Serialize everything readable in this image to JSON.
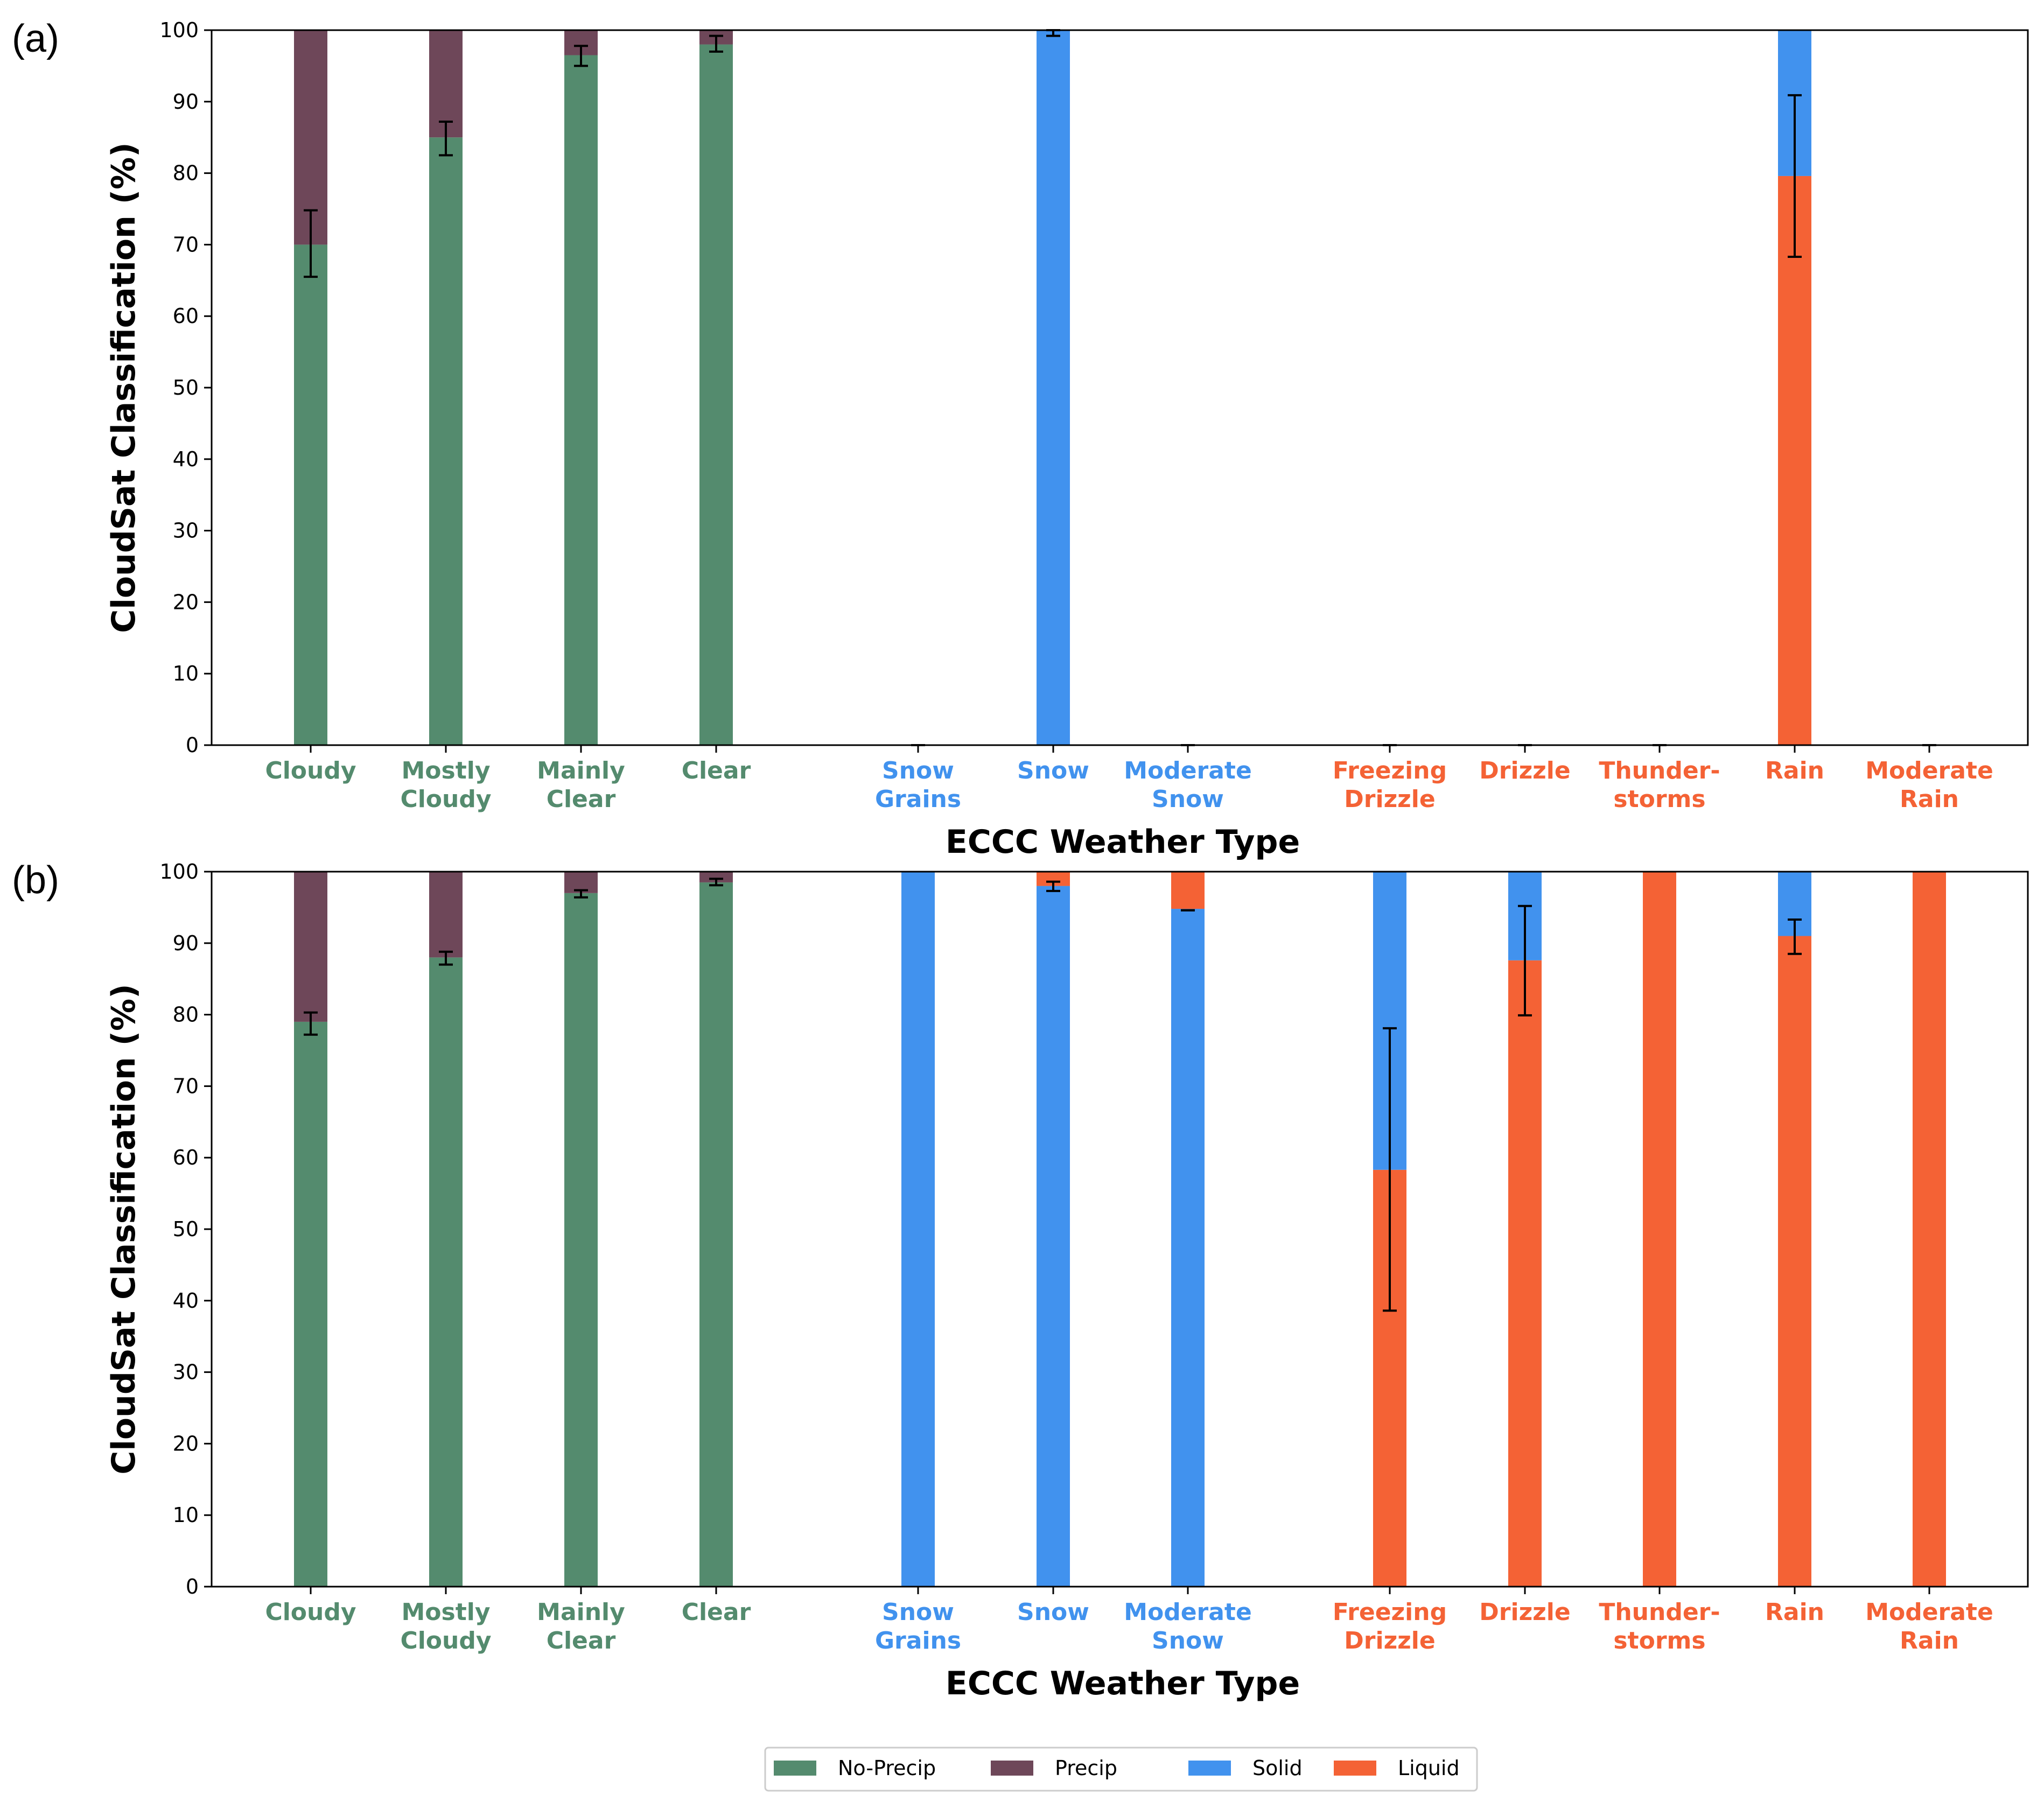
{
  "chart_data": {
    "type": "bar",
    "stacked": true,
    "colors": {
      "No-Precip": "#548B6E",
      "Precip": "#6E4759",
      "Solid": "#4192EE",
      "Liquid": "#F46235"
    },
    "category_colors": {
      "cloud": "#548B6E",
      "solid": "#4192EE",
      "liquid": "#F46235"
    },
    "categories": [
      {
        "label": [
          "Cloudy"
        ],
        "group": "cloud"
      },
      {
        "label": [
          "Mostly",
          "Cloudy"
        ],
        "group": "cloud"
      },
      {
        "label": [
          "Mainly",
          "Clear"
        ],
        "group": "cloud"
      },
      {
        "label": [
          "Clear"
        ],
        "group": "cloud"
      },
      {
        "label": [
          "Snow",
          "Grains"
        ],
        "group": "solid"
      },
      {
        "label": [
          "Snow"
        ],
        "group": "solid"
      },
      {
        "label": [
          "Moderate",
          "Snow"
        ],
        "group": "solid"
      },
      {
        "label": [
          "Freezing",
          "Drizzle"
        ],
        "group": "liquid"
      },
      {
        "label": [
          "Drizzle"
        ],
        "group": "liquid"
      },
      {
        "label": [
          "Thunder-",
          "storms"
        ],
        "group": "liquid"
      },
      {
        "label": [
          "Rain"
        ],
        "group": "liquid"
      },
      {
        "label": [
          "Moderate",
          "Rain"
        ],
        "group": "liquid"
      }
    ],
    "ylim": [
      0,
      100
    ],
    "yticks": [
      0,
      10,
      20,
      30,
      40,
      50,
      60,
      70,
      80,
      90,
      100
    ],
    "panels": [
      {
        "panel_label": "(a)",
        "xlabel": "ECCC Weather Type",
        "ylabel": "CloudSat Classification (%)",
        "bars": [
          {
            "segments": [
              [
                "No-Precip",
                70
              ],
              [
                "Precip",
                30
              ]
            ],
            "err": [
              65.5,
              74.8
            ]
          },
          {
            "segments": [
              [
                "No-Precip",
                85
              ],
              [
                "Precip",
                15
              ]
            ],
            "err": [
              82.5,
              87.2
            ]
          },
          {
            "segments": [
              [
                "No-Precip",
                96.5
              ],
              [
                "Precip",
                3.5
              ]
            ],
            "err": [
              95,
              97.8
            ]
          },
          {
            "segments": [
              [
                "No-Precip",
                98
              ],
              [
                "Precip",
                2
              ]
            ],
            "err": [
              97,
              99.2
            ]
          },
          {
            "segments": [],
            "err": [
              0,
              0
            ]
          },
          {
            "segments": [
              [
                "Solid",
                100
              ]
            ],
            "err": [
              99.2,
              100
            ]
          },
          {
            "segments": [],
            "err": [
              0,
              0
            ]
          },
          {
            "segments": [],
            "err": [
              0,
              0
            ]
          },
          {
            "segments": [],
            "err": [
              0,
              0
            ]
          },
          {
            "segments": [],
            "err": [
              0,
              0
            ]
          },
          {
            "segments": [
              [
                "Liquid",
                79.6
              ],
              [
                "Solid",
                20.4
              ]
            ],
            "err": [
              68.3,
              90.9
            ]
          },
          {
            "segments": [],
            "err": [
              0,
              0
            ]
          }
        ]
      },
      {
        "panel_label": "(b)",
        "xlabel": "ECCC Weather Type",
        "ylabel": "CloudSat Classification (%)",
        "bars": [
          {
            "segments": [
              [
                "No-Precip",
                79
              ],
              [
                "Precip",
                21
              ]
            ],
            "err": [
              77.2,
              80.3
            ]
          },
          {
            "segments": [
              [
                "No-Precip",
                88
              ],
              [
                "Precip",
                12
              ]
            ],
            "err": [
              87,
              88.8
            ]
          },
          {
            "segments": [
              [
                "No-Precip",
                97
              ],
              [
                "Precip",
                3
              ]
            ],
            "err": [
              96.4,
              97.4
            ]
          },
          {
            "segments": [
              [
                "No-Precip",
                98.5
              ],
              [
                "Precip",
                1.5
              ]
            ],
            "err": [
              98.1,
              99
            ]
          },
          {
            "segments": [
              [
                "Solid",
                100
              ]
            ],
            "err": null
          },
          {
            "segments": [
              [
                "Solid",
                98
              ],
              [
                "Liquid",
                2
              ]
            ],
            "err": [
              97.3,
              98.6
            ]
          },
          {
            "segments": [
              [
                "Solid",
                94.8
              ],
              [
                "Liquid",
                5.2
              ]
            ],
            "err": [
              94.6,
              94.6
            ]
          },
          {
            "segments": [
              [
                "Liquid",
                58.3
              ],
              [
                "Solid",
                41.7
              ]
            ],
            "err": [
              38.6,
              78.1
            ]
          },
          {
            "segments": [
              [
                "Liquid",
                87.6
              ],
              [
                "Solid",
                12.4
              ]
            ],
            "err": [
              79.9,
              95.2
            ]
          },
          {
            "segments": [
              [
                "Liquid",
                100
              ]
            ],
            "err": null
          },
          {
            "segments": [
              [
                "Liquid",
                91
              ],
              [
                "Solid",
                9
              ]
            ],
            "err": [
              88.5,
              93.3
            ]
          },
          {
            "segments": [
              [
                "Liquid",
                100
              ]
            ],
            "err": null
          }
        ]
      }
    ],
    "legend": {
      "position": "bottom-center",
      "entries": [
        "No-Precip",
        "Precip",
        "Solid",
        "Liquid"
      ]
    }
  }
}
